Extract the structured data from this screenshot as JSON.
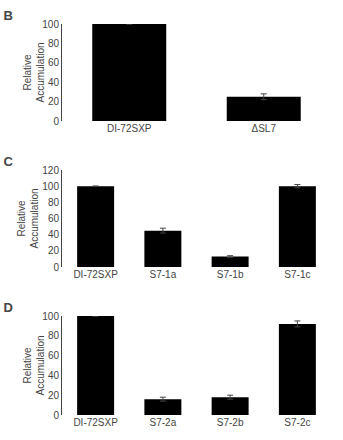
{
  "chart_data": [
    {
      "type": "bar",
      "title": "B",
      "categories": [
        "DI-72SXP",
        "ΔSL7"
      ],
      "values": [
        100,
        25
      ],
      "errors": [
        0,
        3
      ],
      "color": "#000000",
      "ylabel": "Relative\nAccumulation",
      "ylim": [
        0,
        100
      ],
      "yticks": [
        0,
        20,
        40,
        60,
        80,
        100
      ],
      "grid": false
    },
    {
      "type": "bar",
      "title": "C",
      "categories": [
        "DI-72SXP",
        "S7-1a",
        "S7-1b",
        "S7-1c"
      ],
      "values": [
        100,
        45,
        13,
        100
      ],
      "errors": [
        0,
        3,
        1,
        2
      ],
      "color": "#000000",
      "ylabel": "Relative\nAccumulation",
      "ylim": [
        0,
        120
      ],
      "yticks": [
        0,
        20,
        40,
        60,
        80,
        100,
        120
      ],
      "grid": false
    },
    {
      "type": "bar",
      "title": "D",
      "categories": [
        "DI-72SXP",
        "S7-2a",
        "S7-2b",
        "S7-2c"
      ],
      "values": [
        100,
        16,
        18,
        92
      ],
      "errors": [
        0,
        2,
        2,
        3
      ],
      "color": "#000000",
      "ylabel": "Relative\nAccumulation",
      "ylim": [
        0,
        100
      ],
      "yticks": [
        0,
        20,
        40,
        60,
        80,
        100
      ],
      "grid": false
    }
  ]
}
